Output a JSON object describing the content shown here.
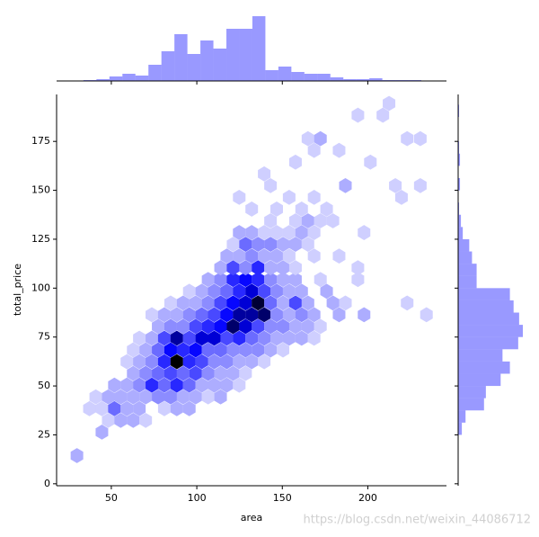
{
  "chart_data": {
    "type": "hexbin_joint",
    "x_label": "area",
    "y_label": "total_price",
    "watermark": "https://blog.csdn.net/weixin_44086712",
    "color": "#0000ff",
    "xlim": [
      18,
      246
    ],
    "ylim": [
      -1,
      199
    ],
    "xticks": [
      50,
      100,
      150,
      200
    ],
    "yticks": [
      0,
      25,
      50,
      75,
      100,
      125,
      150,
      175
    ],
    "hexbins": [
      [
        29.9,
        14.4,
        2
      ],
      [
        44.5,
        26.4,
        2
      ],
      [
        48.2,
        32.4,
        1
      ],
      [
        55.5,
        32.4,
        2
      ],
      [
        62.8,
        32.4,
        2
      ],
      [
        70.1,
        32.4,
        1
      ],
      [
        37.2,
        38.4,
        1
      ],
      [
        44.5,
        38.4,
        1
      ],
      [
        51.8,
        38.4,
        4
      ],
      [
        59.1,
        38.4,
        2
      ],
      [
        66.4,
        38.4,
        2
      ],
      [
        81,
        38.4,
        1
      ],
      [
        88.3,
        38.4,
        2
      ],
      [
        95.6,
        38.4,
        2
      ],
      [
        40.9,
        44.4,
        1
      ],
      [
        48.2,
        44.4,
        2
      ],
      [
        55.5,
        44.4,
        2
      ],
      [
        62.8,
        44.4,
        2
      ],
      [
        70.1,
        44.4,
        2
      ],
      [
        77.4,
        44.4,
        3
      ],
      [
        84.7,
        44.4,
        3
      ],
      [
        92,
        44.4,
        2
      ],
      [
        99.3,
        44.4,
        2
      ],
      [
        106.6,
        44.4,
        1
      ],
      [
        113.9,
        44.4,
        2
      ],
      [
        51.8,
        50.4,
        2
      ],
      [
        59.1,
        50.4,
        2
      ],
      [
        66.4,
        50.4,
        3
      ],
      [
        73.7,
        50.4,
        6
      ],
      [
        81,
        50.4,
        4
      ],
      [
        88.3,
        50.4,
        6
      ],
      [
        95.6,
        50.4,
        4
      ],
      [
        102.9,
        50.4,
        2
      ],
      [
        110.2,
        50.4,
        2
      ],
      [
        117.5,
        50.4,
        2
      ],
      [
        124.8,
        50.4,
        1
      ],
      [
        62.8,
        56.4,
        2
      ],
      [
        70.1,
        56.4,
        3
      ],
      [
        77.4,
        56.4,
        4
      ],
      [
        84.7,
        56.4,
        5
      ],
      [
        92,
        56.4,
        4
      ],
      [
        99.3,
        56.4,
        5
      ],
      [
        106.6,
        56.4,
        3
      ],
      [
        113.9,
        56.4,
        2
      ],
      [
        121.2,
        56.4,
        2
      ],
      [
        128.5,
        56.4,
        1
      ],
      [
        59.1,
        62.4,
        1
      ],
      [
        66.4,
        62.4,
        2
      ],
      [
        73.7,
        62.4,
        3
      ],
      [
        81,
        62.4,
        6
      ],
      [
        88.3,
        62.4,
        12
      ],
      [
        95.6,
        62.4,
        6
      ],
      [
        102.9,
        62.4,
        5
      ],
      [
        110.2,
        62.4,
        3
      ],
      [
        117.5,
        62.4,
        3
      ],
      [
        124.8,
        62.4,
        2
      ],
      [
        132.1,
        62.4,
        2
      ],
      [
        139.4,
        62.4,
        1
      ],
      [
        62.8,
        68.4,
        1
      ],
      [
        70.1,
        68.4,
        2
      ],
      [
        77.4,
        68.4,
        4
      ],
      [
        84.7,
        68.4,
        7
      ],
      [
        92,
        68.4,
        6
      ],
      [
        99.3,
        68.4,
        7
      ],
      [
        106.6,
        68.4,
        4
      ],
      [
        113.9,
        68.4,
        4
      ],
      [
        121.2,
        68.4,
        3
      ],
      [
        128.5,
        68.4,
        3
      ],
      [
        135.8,
        68.4,
        3
      ],
      [
        143.1,
        68.4,
        2
      ],
      [
        150.4,
        68.4,
        1
      ],
      [
        66.4,
        74.4,
        1
      ],
      [
        73.7,
        74.4,
        2
      ],
      [
        81,
        74.4,
        5
      ],
      [
        88.3,
        74.4,
        9
      ],
      [
        95.6,
        74.4,
        5
      ],
      [
        102.9,
        74.4,
        8
      ],
      [
        110.2,
        74.4,
        8
      ],
      [
        117.5,
        74.4,
        5
      ],
      [
        124.8,
        74.4,
        6
      ],
      [
        132.1,
        74.4,
        4
      ],
      [
        139.4,
        74.4,
        3
      ],
      [
        146.7,
        74.4,
        2
      ],
      [
        154,
        74.4,
        2
      ],
      [
        161.3,
        74.4,
        2
      ],
      [
        168.6,
        74.4,
        1
      ],
      [
        77.4,
        80.4,
        2
      ],
      [
        84.7,
        80.4,
        3
      ],
      [
        92,
        80.4,
        3
      ],
      [
        99.3,
        80.4,
        5
      ],
      [
        106.6,
        80.4,
        6
      ],
      [
        113.9,
        80.4,
        7
      ],
      [
        121.2,
        80.4,
        10
      ],
      [
        128.5,
        80.4,
        8
      ],
      [
        135.8,
        80.4,
        5
      ],
      [
        143.1,
        80.4,
        3
      ],
      [
        150.4,
        80.4,
        3
      ],
      [
        157.7,
        80.4,
        2
      ],
      [
        165,
        80.4,
        2
      ],
      [
        172.3,
        80.4,
        1
      ],
      [
        73.7,
        86.4,
        1
      ],
      [
        81,
        86.4,
        2
      ],
      [
        88.3,
        86.4,
        2
      ],
      [
        95.6,
        86.4,
        3
      ],
      [
        102.9,
        86.4,
        4
      ],
      [
        110.2,
        86.4,
        5
      ],
      [
        117.5,
        86.4,
        7
      ],
      [
        124.8,
        86.4,
        9
      ],
      [
        132.1,
        86.4,
        9
      ],
      [
        139.4,
        86.4,
        10
      ],
      [
        146.7,
        86.4,
        3
      ],
      [
        154,
        86.4,
        2
      ],
      [
        161.3,
        86.4,
        3
      ],
      [
        168.6,
        86.4,
        2
      ],
      [
        183.2,
        86.4,
        2
      ],
      [
        197.8,
        86.4,
        2
      ],
      [
        234.3,
        86.4,
        1
      ],
      [
        84.7,
        92.4,
        1
      ],
      [
        92,
        92.4,
        2
      ],
      [
        99.3,
        92.4,
        2
      ],
      [
        106.6,
        92.4,
        3
      ],
      [
        113.9,
        92.4,
        5
      ],
      [
        121.2,
        92.4,
        7
      ],
      [
        128.5,
        92.4,
        8
      ],
      [
        135.8,
        92.4,
        11
      ],
      [
        143.1,
        92.4,
        4
      ],
      [
        150.4,
        92.4,
        2
      ],
      [
        157.7,
        92.4,
        5
      ],
      [
        165,
        92.4,
        2
      ],
      [
        179.6,
        92.4,
        2
      ],
      [
        186.9,
        92.4,
        1
      ],
      [
        223,
        92.4,
        1
      ],
      [
        95.6,
        98.4,
        1
      ],
      [
        102.9,
        98.4,
        2
      ],
      [
        110.2,
        98.4,
        3
      ],
      [
        117.5,
        98.4,
        4
      ],
      [
        124.8,
        98.4,
        6
      ],
      [
        132.1,
        98.4,
        8
      ],
      [
        139.4,
        98.4,
        5
      ],
      [
        146.7,
        98.4,
        3
      ],
      [
        154,
        98.4,
        2
      ],
      [
        161.3,
        98.4,
        2
      ],
      [
        175.9,
        98.4,
        2
      ],
      [
        106.6,
        104.4,
        2
      ],
      [
        113.9,
        104.4,
        3
      ],
      [
        121.2,
        104.4,
        6
      ],
      [
        128.5,
        104.4,
        7
      ],
      [
        135.8,
        104.4,
        6
      ],
      [
        143.1,
        104.4,
        3
      ],
      [
        150.4,
        104.4,
        2
      ],
      [
        157.7,
        104.4,
        2
      ],
      [
        172.3,
        104.4,
        1
      ],
      [
        194.2,
        104.4,
        1
      ],
      [
        113.9,
        110.4,
        2
      ],
      [
        121.2,
        110.4,
        5
      ],
      [
        128.5,
        110.4,
        3
      ],
      [
        135.8,
        110.4,
        6
      ],
      [
        143.1,
        110.4,
        2
      ],
      [
        150.4,
        110.4,
        2
      ],
      [
        157.7,
        110.4,
        1
      ],
      [
        194.2,
        110.4,
        1
      ],
      [
        117.5,
        116.4,
        2
      ],
      [
        124.8,
        116.4,
        2
      ],
      [
        132.1,
        116.4,
        3
      ],
      [
        139.4,
        116.4,
        2
      ],
      [
        146.7,
        116.4,
        2
      ],
      [
        154,
        116.4,
        1
      ],
      [
        168.6,
        116.4,
        1
      ],
      [
        183.2,
        116.4,
        1
      ],
      [
        121.2,
        122.4,
        1
      ],
      [
        128.5,
        122.4,
        4
      ],
      [
        135.8,
        122.4,
        3
      ],
      [
        143.1,
        122.4,
        3
      ],
      [
        150.4,
        122.4,
        2
      ],
      [
        157.7,
        122.4,
        2
      ],
      [
        165,
        122.4,
        1
      ],
      [
        124.8,
        128.4,
        2
      ],
      [
        132.1,
        128.4,
        2
      ],
      [
        139.4,
        128.4,
        1
      ],
      [
        146.7,
        128.4,
        1
      ],
      [
        154,
        128.4,
        1
      ],
      [
        161.3,
        128.4,
        2
      ],
      [
        168.6,
        128.4,
        1
      ],
      [
        197.8,
        128.4,
        1
      ],
      [
        143.1,
        134.4,
        1
      ],
      [
        157.7,
        134.4,
        1
      ],
      [
        165,
        134.4,
        2
      ],
      [
        172.3,
        134.4,
        1
      ],
      [
        179.6,
        134.4,
        1
      ],
      [
        132.1,
        140.4,
        1
      ],
      [
        146.7,
        140.4,
        1
      ],
      [
        161.3,
        140.4,
        1
      ],
      [
        175.9,
        140.4,
        1
      ],
      [
        124.8,
        146.4,
        1
      ],
      [
        154,
        146.4,
        1
      ],
      [
        168.6,
        146.4,
        1
      ],
      [
        219.7,
        146.4,
        1
      ],
      [
        143.1,
        152.4,
        1
      ],
      [
        186.9,
        152.4,
        2
      ],
      [
        216.1,
        152.4,
        1
      ],
      [
        230.7,
        152.4,
        1
      ],
      [
        139.4,
        158.4,
        1
      ],
      [
        157.7,
        164.4,
        1
      ],
      [
        201.5,
        164.4,
        1
      ],
      [
        168.6,
        170.4,
        1
      ],
      [
        183.2,
        170.4,
        1
      ],
      [
        165,
        176.4,
        1
      ],
      [
        172.3,
        176.4,
        2
      ],
      [
        223,
        176.4,
        1
      ],
      [
        230.7,
        176.4,
        1
      ],
      [
        194.2,
        188.4,
        1
      ],
      [
        208.8,
        188.4,
        1
      ],
      [
        212.4,
        194.4,
        1
      ]
    ],
    "x_marginal": {
      "bins": [
        33.7,
        41.3,
        48.9,
        56.5,
        64.1,
        71.7,
        79.3,
        86.9,
        94.5,
        102.1,
        109.7,
        117.3,
        124.9,
        132.5,
        140.1,
        147.7,
        155.3,
        162.9,
        170.5,
        178.1,
        185.7,
        193.3,
        200.9,
        208.5,
        216.1,
        223.7,
        231.3
      ],
      "counts": [
        1,
        2,
        5,
        8,
        6,
        18,
        33,
        52,
        30,
        45,
        36,
        58,
        58,
        72,
        12,
        16,
        10,
        8,
        8,
        4,
        2,
        2,
        3,
        1,
        1,
        1
      ]
    },
    "y_marginal": {
      "bins": [
        25,
        31.25,
        37.5,
        43.75,
        50,
        56.25,
        62.5,
        68.75,
        75,
        81.25,
        87.5,
        93.75,
        100,
        106.25,
        112.5,
        118.75,
        125,
        131.25,
        137.5,
        143.75,
        150,
        156.25,
        162.5,
        168.75,
        175,
        181.25,
        187.5,
        193.75,
        200
      ],
      "counts": [
        4,
        8,
        28,
        30,
        46,
        56,
        48,
        65,
        70,
        66,
        60,
        56,
        20,
        20,
        15,
        12,
        5,
        3,
        1,
        0,
        2,
        0,
        2,
        1,
        0,
        0,
        1,
        0
      ]
    }
  }
}
